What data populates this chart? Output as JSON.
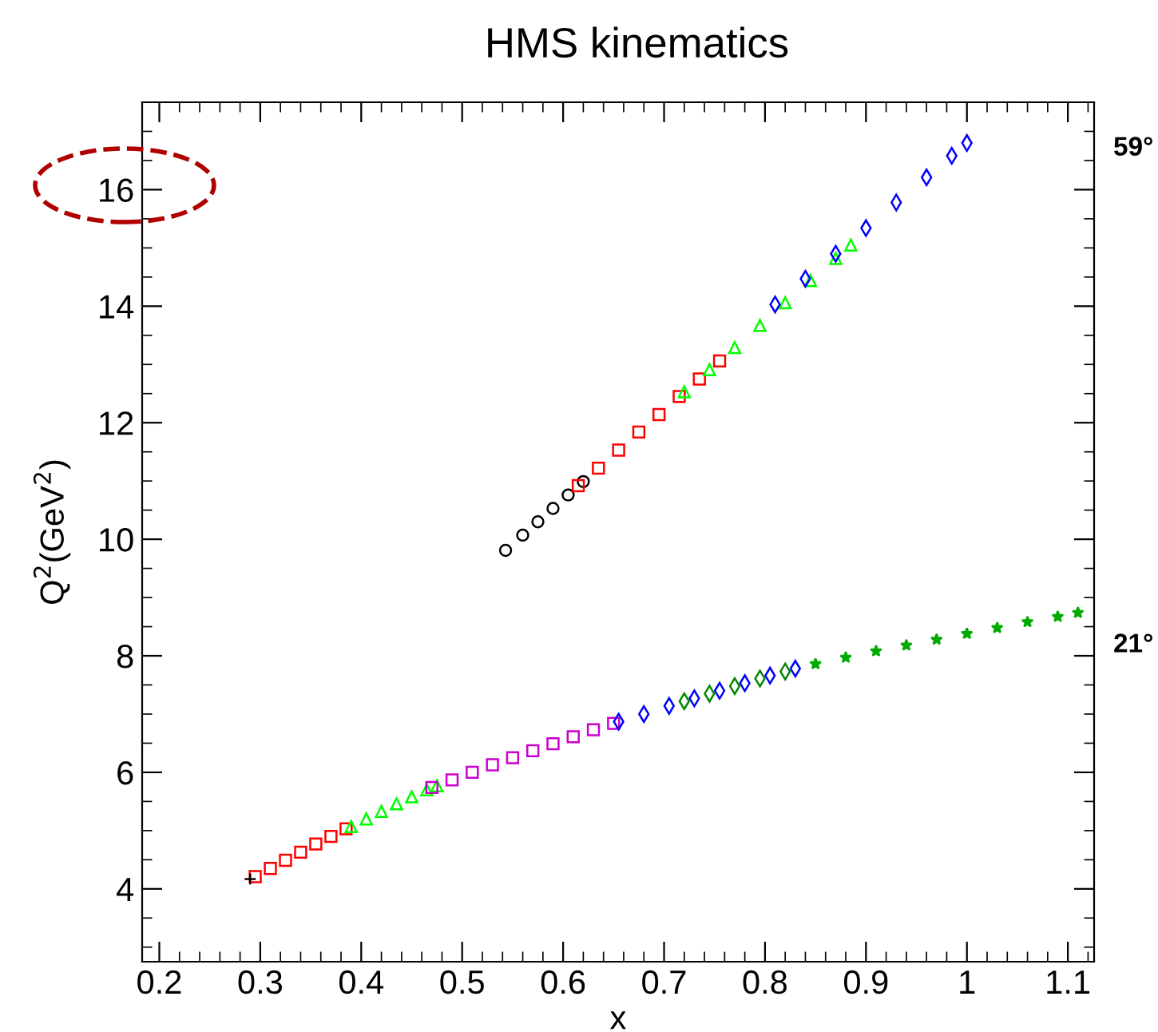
{
  "chart_data": {
    "type": "scatter",
    "title": "HMS kinematics",
    "xlabel": "x",
    "ylabel": "Q$^{2}$(GeV$^{2}$)",
    "xlim": [
      0.183,
      1.126
    ],
    "ylim": [
      2.75,
      17.5
    ],
    "xticks": [
      0.2,
      0.3,
      0.4,
      0.5,
      0.6,
      0.7,
      0.8,
      0.9,
      1,
      1.1
    ],
    "yticks": [
      4,
      6,
      8,
      10,
      12,
      14,
      16
    ],
    "grid": false,
    "legend": false,
    "annotations": [
      "59°",
      "21°"
    ],
    "series": [
      {
        "color": "#000000",
        "marker": "circle",
        "x": [
          0.543,
          0.56,
          0.575,
          0.59,
          0.605,
          0.62
        ],
        "values": [
          9.81,
          10.07,
          10.3,
          10.53,
          10.76,
          10.99
        ]
      },
      {
        "color": "#ff0000",
        "marker": "square",
        "x": [
          0.615,
          0.635,
          0.655,
          0.675,
          0.695,
          0.715,
          0.735,
          0.755
        ],
        "values": [
          10.92,
          11.22,
          11.53,
          11.84,
          12.14,
          12.45,
          12.75,
          13.06
        ]
      },
      {
        "color": "#00ff00",
        "marker": "triangle",
        "x": [
          0.72,
          0.745,
          0.77,
          0.795,
          0.82,
          0.845,
          0.87,
          0.885
        ],
        "values": [
          12.53,
          12.91,
          13.29,
          13.67,
          14.06,
          14.44,
          14.82,
          15.05
        ]
      },
      {
        "color": "#0000ff",
        "marker": "diamond",
        "x": [
          0.81,
          0.84,
          0.87,
          0.9,
          0.93,
          0.96,
          0.985,
          1.0
        ],
        "values": [
          14.03,
          14.47,
          14.9,
          15.34,
          15.78,
          16.21,
          16.58,
          16.8
        ]
      },
      {
        "color": "#000000",
        "marker": "cross",
        "x": [
          0.29
        ],
        "values": [
          4.17
        ]
      },
      {
        "color": "#ff0000",
        "marker": "square",
        "x": [
          0.295,
          0.31,
          0.325,
          0.34,
          0.355,
          0.37,
          0.385
        ],
        "values": [
          4.21,
          4.35,
          4.49,
          4.63,
          4.77,
          4.9,
          5.03
        ]
      },
      {
        "color": "#00ff00",
        "marker": "triangle",
        "x": [
          0.39,
          0.405,
          0.42,
          0.435,
          0.45,
          0.465,
          0.475
        ],
        "values": [
          5.07,
          5.2,
          5.33,
          5.46,
          5.58,
          5.7,
          5.77
        ]
      },
      {
        "color": "#cc00cc",
        "marker": "square",
        "x": [
          0.47,
          0.49,
          0.51,
          0.53,
          0.55,
          0.57,
          0.59,
          0.61,
          0.63,
          0.65
        ],
        "values": [
          5.74,
          5.87,
          6.0,
          6.13,
          6.25,
          6.37,
          6.49,
          6.61,
          6.73,
          6.84
        ]
      },
      {
        "color": "#0000ff",
        "marker": "diamond",
        "x": [
          0.655,
          0.68,
          0.705,
          0.73,
          0.755,
          0.78,
          0.805,
          0.83
        ],
        "values": [
          6.87,
          7.0,
          7.14,
          7.27,
          7.4,
          7.53,
          7.66,
          7.78
        ]
      },
      {
        "color": "#008800",
        "marker": "diamond",
        "x": [
          0.72,
          0.745,
          0.77,
          0.795,
          0.82
        ],
        "values": [
          7.22,
          7.35,
          7.48,
          7.61,
          7.73
        ]
      },
      {
        "color": "#00aa00",
        "marker": "star",
        "x": [
          0.85,
          0.88,
          0.91,
          0.94,
          0.97,
          1.0,
          1.03,
          1.06,
          1.09,
          1.11
        ],
        "values": [
          7.86,
          7.97,
          8.08,
          8.18,
          8.28,
          8.38,
          8.48,
          8.58,
          8.67,
          8.74
        ]
      }
    ]
  }
}
